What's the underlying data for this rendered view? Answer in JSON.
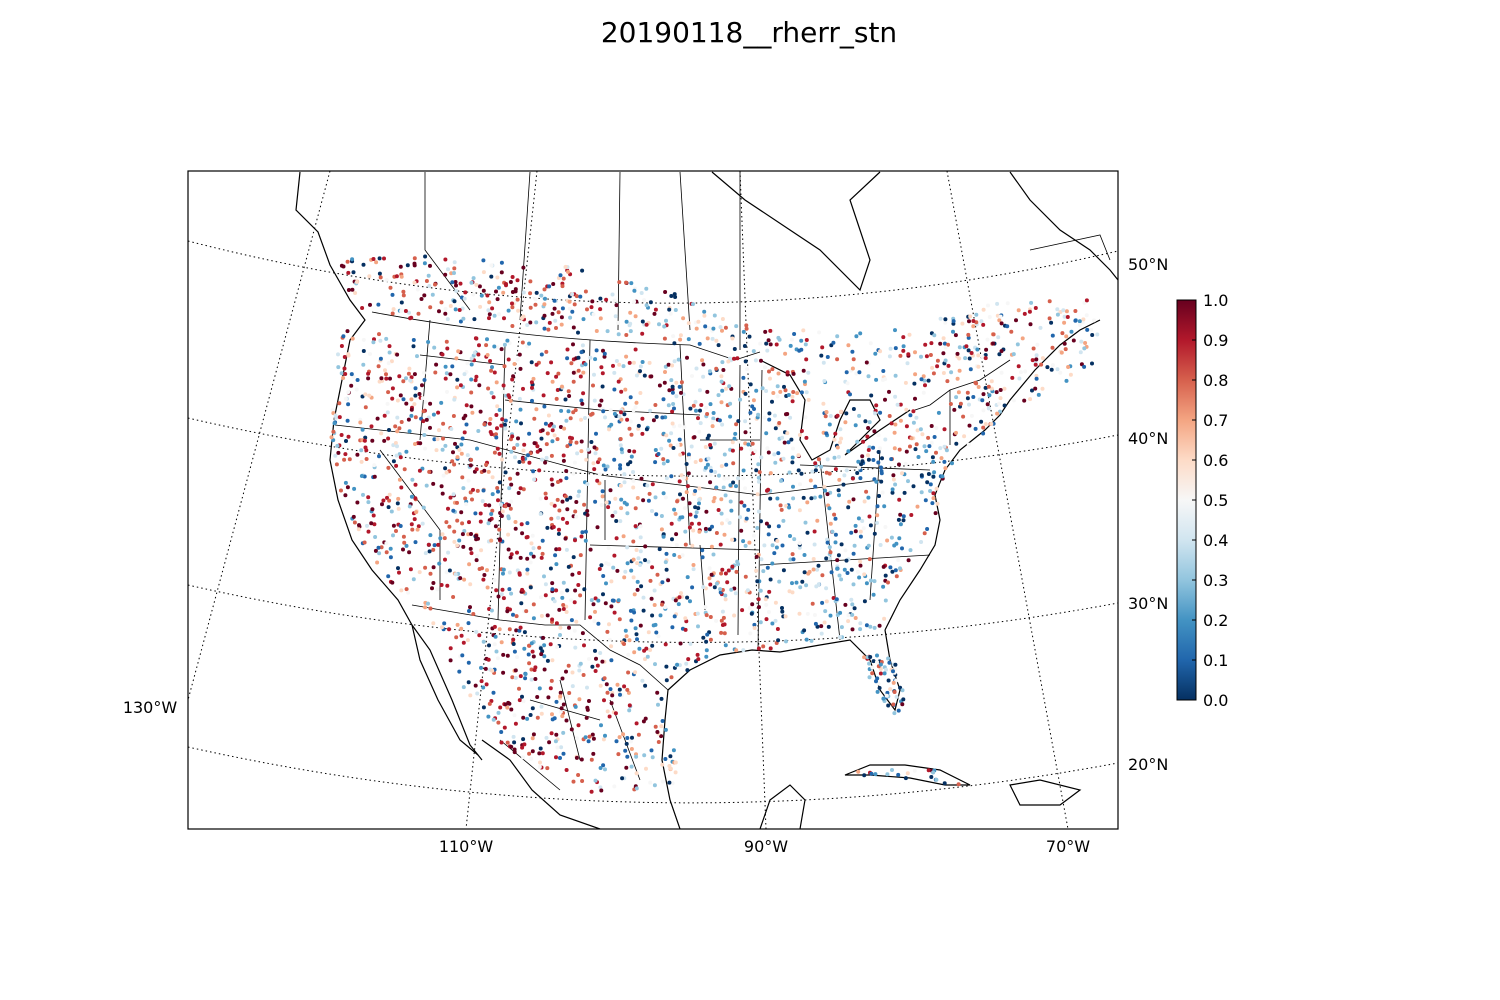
{
  "figure": {
    "title": "20190118__rherr_stn"
  },
  "map": {
    "projection": "conic",
    "extent_desc": "North America / CONUS with Mexico, Caribbean, southern Canada",
    "lon_labels": [
      "110°W",
      "90°W",
      "70°W",
      "130°W"
    ],
    "lat_labels": [
      "50°N",
      "40°N",
      "30°N",
      "20°N"
    ],
    "gridline_style": "dotted",
    "frame_color": "#000000",
    "marker": "station points colored by value",
    "colormap": "RdBu_r"
  },
  "colorbar": {
    "min": 0.0,
    "max": 1.0,
    "ticks": [
      "1.0",
      "0.9",
      "0.8",
      "0.7",
      "0.6",
      "0.5",
      "0.4",
      "0.3",
      "0.2",
      "0.1",
      "0.0"
    ],
    "colors": [
      "#67001f",
      "#b2182b",
      "#d6604d",
      "#f4a582",
      "#fddbc7",
      "#f7f7f7",
      "#d1e5f0",
      "#92c5de",
      "#4393c3",
      "#2166ac",
      "#053061"
    ]
  }
}
